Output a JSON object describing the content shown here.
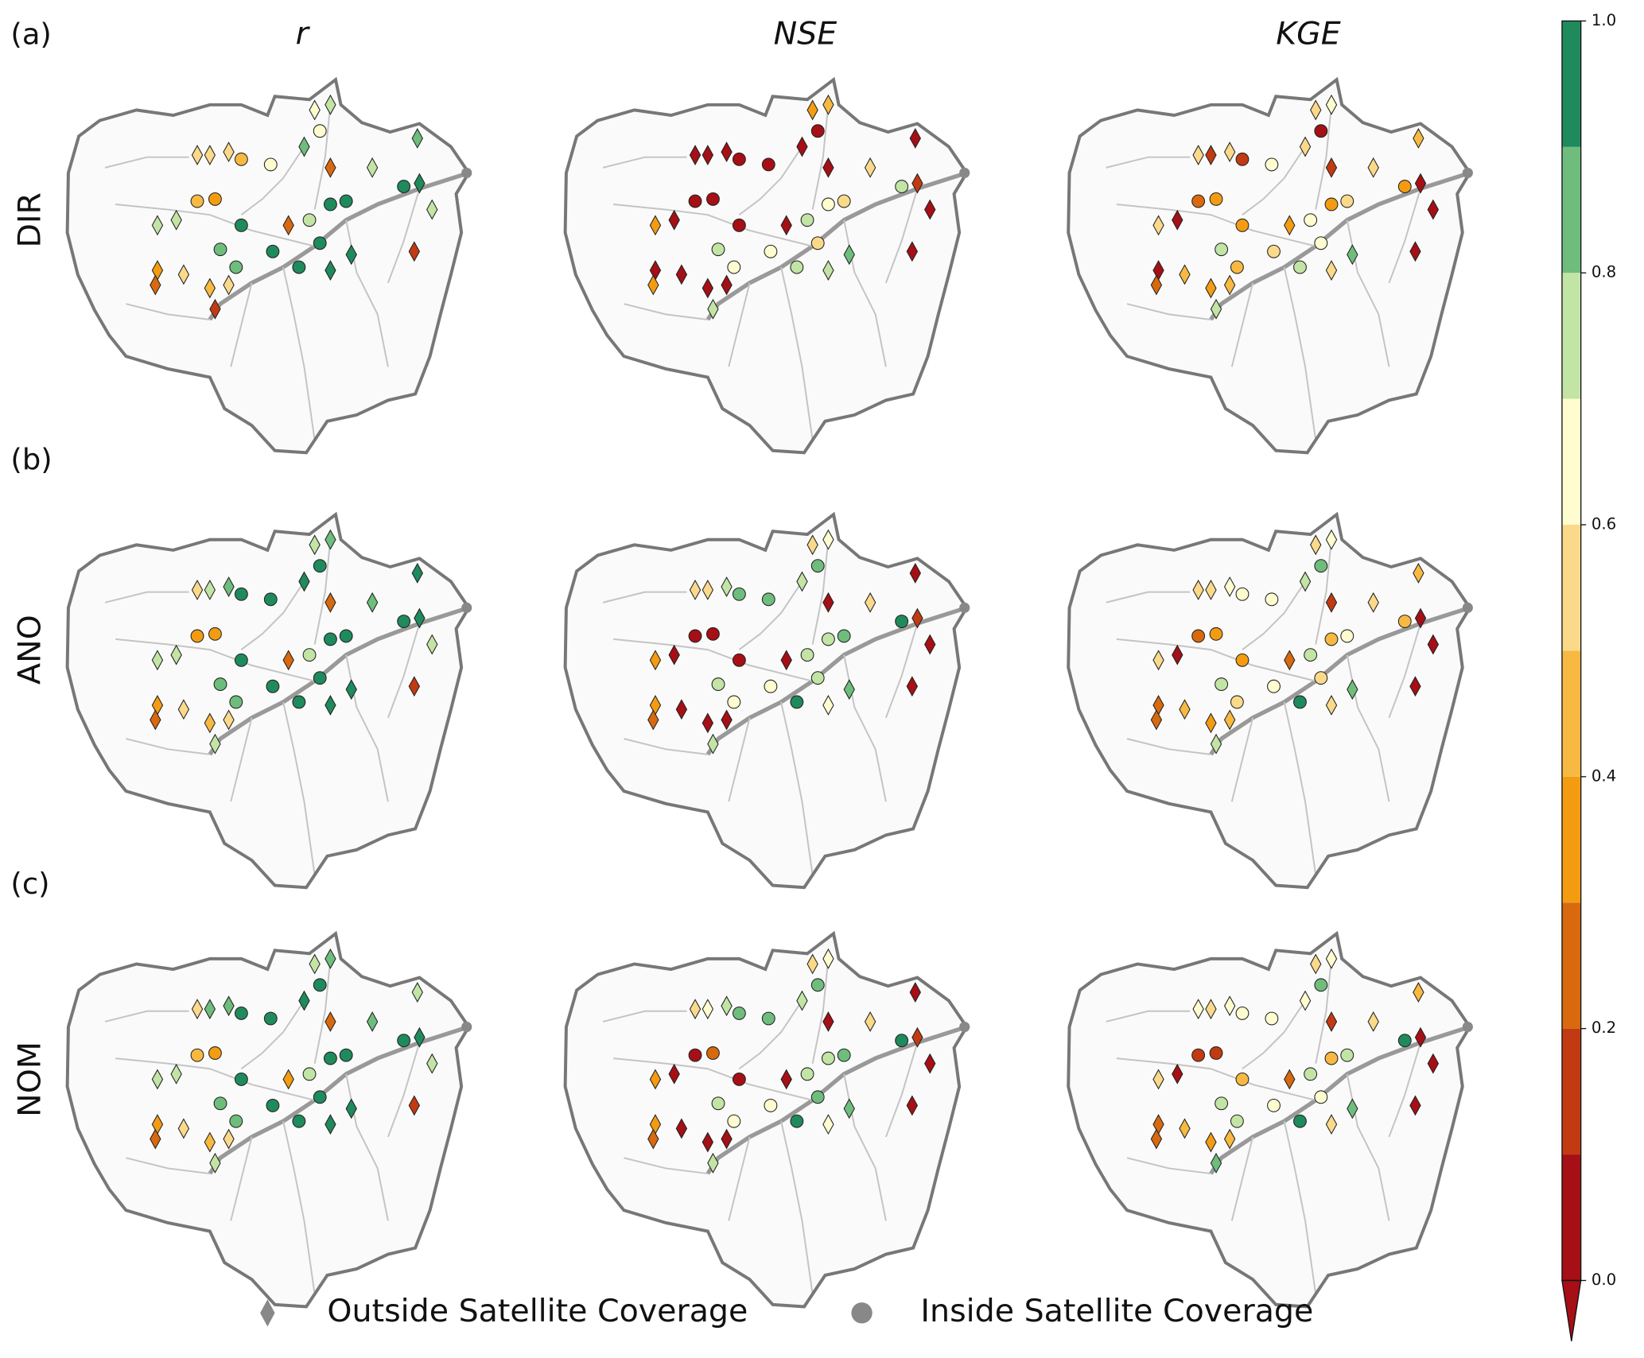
{
  "chart_data": {
    "type": "map",
    "column_titles": [
      "r",
      "NSE",
      "KGE"
    ],
    "row_labels": [
      "DIR",
      "ANO",
      "NOM"
    ],
    "panel_labels": [
      "(a)",
      "(b)",
      "(c)"
    ],
    "legend": [
      "Outside Satellite Coverage",
      "Inside Satellite Coverage"
    ],
    "inside": [
      false,
      false,
      false,
      true,
      true,
      false,
      false,
      true,
      false,
      false,
      false,
      false,
      true,
      false,
      false,
      true,
      true,
      true,
      false,
      false,
      true,
      true,
      true,
      false,
      true,
      true,
      true,
      true,
      true,
      false,
      false,
      false,
      false,
      false,
      false,
      false,
      false,
      false
    ],
    "values": [
      [
        [
          0.55,
          0.5,
          0.55,
          0.45,
          0.65,
          0.6,
          0.75,
          0.65,
          0.8,
          0.2,
          0.75,
          0.85,
          0.95,
          0.95,
          0.75,
          0.4,
          0.35,
          0.95,
          0.75,
          0.75,
          0.85,
          0.85,
          0.95,
          0.25,
          0.75,
          0.95,
          0.95,
          0.95,
          0.95,
          0.95,
          0.95,
          0.3,
          0.55,
          0.25,
          0.45,
          0.55,
          0.15,
          0.15
        ],
        [
          0.05,
          0.05,
          0.05,
          0.05,
          0.05,
          0.35,
          0.45,
          0.05,
          0.05,
          0.05,
          0.55,
          0.05,
          0.75,
          0.15,
          0.05,
          0.05,
          0.05,
          0.05,
          0.05,
          0.35,
          0.75,
          0.65,
          0.65,
          0.05,
          0.75,
          0.65,
          0.55,
          0.55,
          0.75,
          0.75,
          0.85,
          0.05,
          0.05,
          0.35,
          0.05,
          0.05,
          0.75,
          0.05
        ],
        [
          0.55,
          0.15,
          0.55,
          0.15,
          0.65,
          0.55,
          0.6,
          0.05,
          0.55,
          0.15,
          0.55,
          0.45,
          0.35,
          0.05,
          0.05,
          0.25,
          0.35,
          0.35,
          0.05,
          0.55,
          0.75,
          0.4,
          0.55,
          0.35,
          0.65,
          0.35,
          0.55,
          0.6,
          0.75,
          0.55,
          0.85,
          0.05,
          0.45,
          0.25,
          0.35,
          0.45,
          0.75,
          0.05
        ]
      ],
      [
        [
          0.55,
          0.75,
          0.85,
          0.95,
          0.95,
          0.75,
          0.85,
          0.95,
          0.95,
          0.25,
          0.85,
          0.95,
          0.95,
          0.95,
          0.75,
          0.3,
          0.35,
          0.95,
          0.75,
          0.75,
          0.85,
          0.85,
          0.95,
          0.25,
          0.75,
          0.95,
          0.95,
          0.95,
          0.95,
          0.95,
          0.95,
          0.3,
          0.55,
          0.25,
          0.45,
          0.55,
          0.75,
          0.15
        ],
        [
          0.55,
          0.55,
          0.75,
          0.85,
          0.85,
          0.55,
          0.65,
          0.85,
          0.75,
          0.05,
          0.55,
          0.05,
          0.95,
          0.15,
          0.05,
          0.05,
          0.05,
          0.05,
          0.05,
          0.35,
          0.75,
          0.65,
          0.65,
          0.05,
          0.75,
          0.75,
          0.85,
          0.75,
          0.95,
          0.65,
          0.85,
          0.35,
          0.05,
          0.25,
          0.05,
          0.05,
          0.75,
          0.05
        ],
        [
          0.55,
          0.55,
          0.65,
          0.65,
          0.65,
          0.55,
          0.6,
          0.85,
          0.75,
          0.15,
          0.55,
          0.45,
          0.45,
          0.05,
          0.05,
          0.25,
          0.35,
          0.35,
          0.05,
          0.55,
          0.75,
          0.55,
          0.65,
          0.25,
          0.75,
          0.45,
          0.65,
          0.55,
          0.95,
          0.55,
          0.85,
          0.25,
          0.45,
          0.25,
          0.35,
          0.45,
          0.75,
          0.05
        ]
      ],
      [
        [
          0.55,
          0.85,
          0.85,
          0.95,
          0.95,
          0.75,
          0.85,
          0.95,
          0.95,
          0.25,
          0.85,
          0.75,
          0.95,
          0.95,
          0.75,
          0.4,
          0.35,
          0.95,
          0.75,
          0.75,
          0.85,
          0.85,
          0.95,
          0.35,
          0.75,
          0.95,
          0.95,
          0.95,
          0.95,
          0.95,
          0.95,
          0.3,
          0.55,
          0.25,
          0.45,
          0.55,
          0.75,
          0.15
        ],
        [
          0.55,
          0.65,
          0.75,
          0.85,
          0.85,
          0.55,
          0.65,
          0.85,
          0.75,
          0.05,
          0.55,
          0.05,
          0.95,
          0.15,
          0.05,
          0.05,
          0.25,
          0.05,
          0.05,
          0.35,
          0.75,
          0.65,
          0.65,
          0.05,
          0.75,
          0.75,
          0.85,
          0.85,
          0.95,
          0.65,
          0.85,
          0.35,
          0.05,
          0.25,
          0.05,
          0.05,
          0.75,
          0.05
        ],
        [
          0.65,
          0.55,
          0.65,
          0.65,
          0.65,
          0.55,
          0.65,
          0.85,
          0.65,
          0.15,
          0.55,
          0.45,
          0.95,
          0.05,
          0.05,
          0.15,
          0.15,
          0.45,
          0.05,
          0.55,
          0.75,
          0.75,
          0.65,
          0.25,
          0.75,
          0.45,
          0.75,
          0.65,
          0.95,
          0.55,
          0.85,
          0.25,
          0.45,
          0.25,
          0.35,
          0.45,
          0.85,
          0.05
        ]
      ]
    ],
    "colorbar": {
      "boundaries": [
        0,
        0.1,
        0.2,
        0.3,
        0.4,
        0.5,
        0.6,
        0.7,
        0.8,
        0.9,
        1
      ],
      "colors": [
        "#a50f15",
        "#c23a12",
        "#d8690e",
        "#f39c12",
        "#f7b941",
        "#fbd98a",
        "#fffdd0",
        "#c2e4a5",
        "#6ebd7c",
        "#1f8a5c"
      ],
      "extend": "min",
      "ticks": [
        {
          "value": 0,
          "label": "0.0"
        },
        0.2,
        0.4,
        0.6,
        0.8,
        {
          "value": 1,
          "label": "1.0"
        }
      ]
    }
  }
}
